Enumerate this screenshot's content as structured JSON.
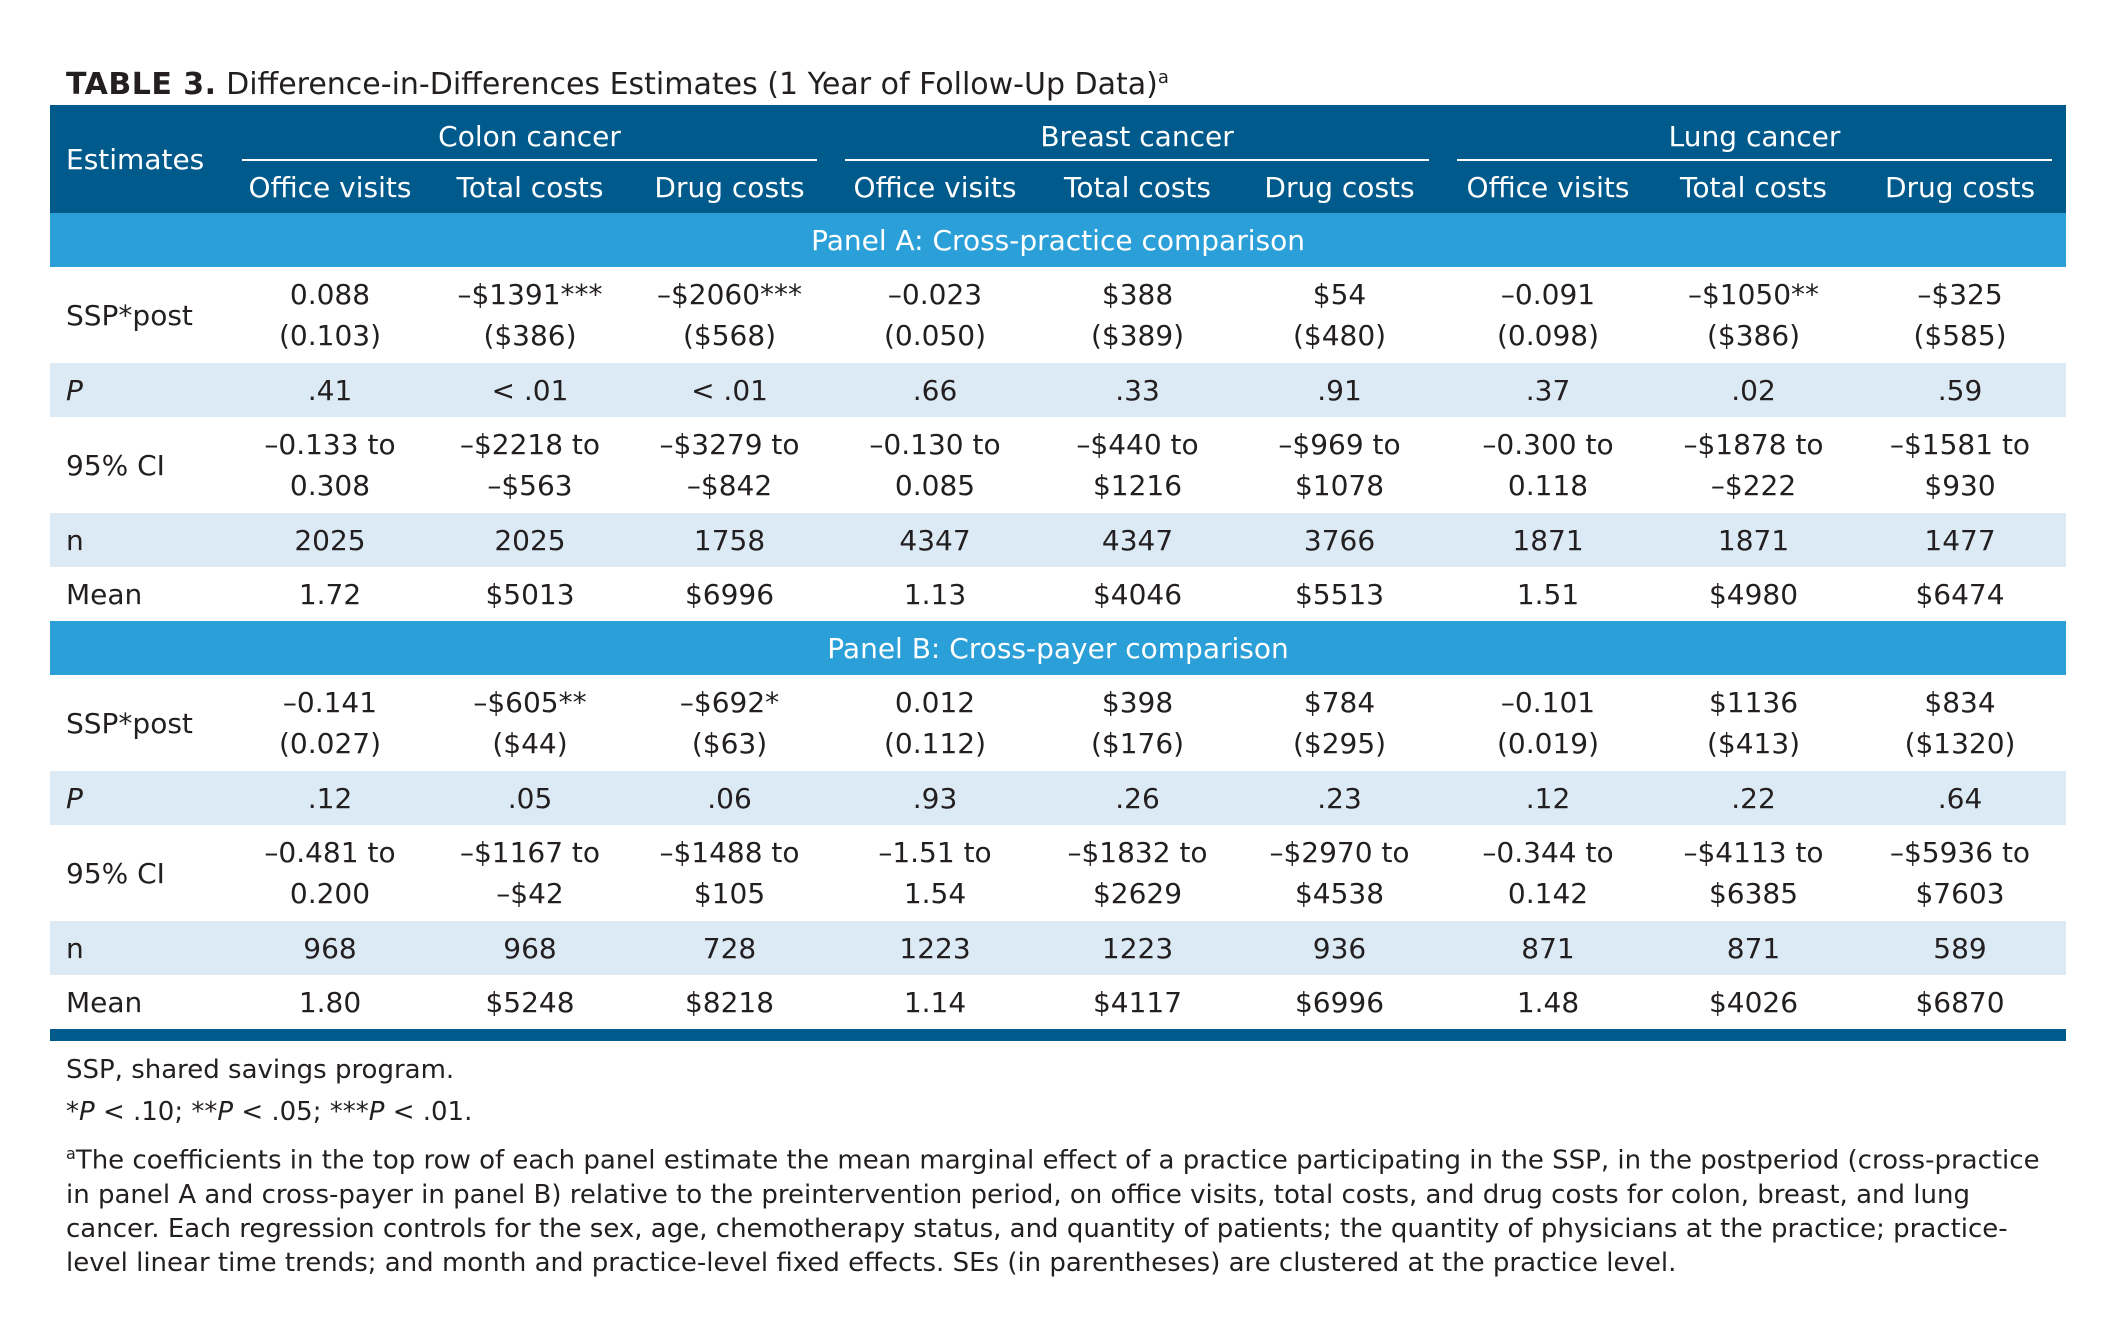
{
  "title": {
    "label": "TABLE 3.",
    "text": "Difference-in-Differences Estimates (1 Year of Follow-Up Data)",
    "marker": "a"
  },
  "header": {
    "estimates": "Estimates",
    "groups": [
      "Colon cancer",
      "Breast cancer",
      "Lung cancer"
    ],
    "columns": [
      "Office visits",
      "Total costs",
      "Drug costs",
      "Office visits",
      "Total costs",
      "Drug costs",
      "Office visits",
      "Total costs",
      "Drug costs"
    ]
  },
  "panels": [
    {
      "title": "Panel A: Cross-practice comparison",
      "rows": [
        {
          "label": "SSP*post",
          "cells": [
            [
              "0.088",
              "(0.103)"
            ],
            [
              "–$1391***",
              "($386)"
            ],
            [
              "–$2060***",
              "($568)"
            ],
            [
              "–0.023",
              "(0.050)"
            ],
            [
              "$388",
              "($389)"
            ],
            [
              "$54",
              "($480)"
            ],
            [
              "–0.091",
              "(0.098)"
            ],
            [
              "–$1050**",
              "($386)"
            ],
            [
              "–$325",
              "($585)"
            ]
          ]
        },
        {
          "label": "P",
          "cells": [
            [
              ".41"
            ],
            [
              "< .01"
            ],
            [
              "< .01"
            ],
            [
              ".66"
            ],
            [
              ".33"
            ],
            [
              ".91"
            ],
            [
              ".37"
            ],
            [
              ".02"
            ],
            [
              ".59"
            ]
          ]
        },
        {
          "label": "95% CI",
          "cells": [
            [
              "–0.133 to",
              "0.308"
            ],
            [
              "–$2218 to",
              "–$563"
            ],
            [
              "–$3279 to",
              "–$842"
            ],
            [
              "–0.130 to",
              "0.085"
            ],
            [
              "–$440 to",
              "$1216"
            ],
            [
              "–$969 to",
              "$1078"
            ],
            [
              "–0.300 to",
              "0.118"
            ],
            [
              "–$1878 to",
              "–$222"
            ],
            [
              "–$1581 to",
              "$930"
            ]
          ]
        },
        {
          "label": "n",
          "cells": [
            [
              "2025"
            ],
            [
              "2025"
            ],
            [
              "1758"
            ],
            [
              "4347"
            ],
            [
              "4347"
            ],
            [
              "3766"
            ],
            [
              "1871"
            ],
            [
              "1871"
            ],
            [
              "1477"
            ]
          ]
        },
        {
          "label": "Mean",
          "cells": [
            [
              "1.72"
            ],
            [
              "$5013"
            ],
            [
              "$6996"
            ],
            [
              "1.13"
            ],
            [
              "$4046"
            ],
            [
              "$5513"
            ],
            [
              "1.51"
            ],
            [
              "$4980"
            ],
            [
              "$6474"
            ]
          ]
        }
      ]
    },
    {
      "title": "Panel B: Cross-payer comparison",
      "rows": [
        {
          "label": "SSP*post",
          "cells": [
            [
              "–0.141",
              "(0.027)"
            ],
            [
              "–$605**",
              "($44)"
            ],
            [
              "–$692*",
              "($63)"
            ],
            [
              "0.012",
              "(0.112)"
            ],
            [
              "$398",
              "($176)"
            ],
            [
              "$784",
              "($295)"
            ],
            [
              "–0.101",
              "(0.019)"
            ],
            [
              "$1136",
              "($413)"
            ],
            [
              "$834",
              "($1320)"
            ]
          ]
        },
        {
          "label": "P",
          "cells": [
            [
              ".12"
            ],
            [
              ".05"
            ],
            [
              ".06"
            ],
            [
              ".93"
            ],
            [
              ".26"
            ],
            [
              ".23"
            ],
            [
              ".12"
            ],
            [
              ".22"
            ],
            [
              ".64"
            ]
          ]
        },
        {
          "label": "95% CI",
          "cells": [
            [
              "–0.481 to",
              "0.200"
            ],
            [
              "–$1167 to",
              "–$42"
            ],
            [
              "–$1488 to",
              "$105"
            ],
            [
              "–1.51 to",
              "1.54"
            ],
            [
              "–$1832 to",
              "$2629"
            ],
            [
              "–$2970 to",
              "$4538"
            ],
            [
              "–0.344 to",
              "0.142"
            ],
            [
              "–$4113 to",
              "$6385"
            ],
            [
              "–$5936 to",
              "$7603"
            ]
          ]
        },
        {
          "label": "n",
          "cells": [
            [
              "968"
            ],
            [
              "968"
            ],
            [
              "728"
            ],
            [
              "1223"
            ],
            [
              "1223"
            ],
            [
              "936"
            ],
            [
              "871"
            ],
            [
              "871"
            ],
            [
              "589"
            ]
          ]
        },
        {
          "label": "Mean",
          "cells": [
            [
              "1.80"
            ],
            [
              "$5248"
            ],
            [
              "$8218"
            ],
            [
              "1.14"
            ],
            [
              "$4117"
            ],
            [
              "$6996"
            ],
            [
              "1.48"
            ],
            [
              "$4026"
            ],
            [
              "$6870"
            ]
          ]
        }
      ]
    }
  ],
  "notes": {
    "abbrev": "SSP, shared savings program.",
    "significance": "*P < .10; **P < .05; ***P < .01.",
    "footnote_marker": "a",
    "footnote": "The coefficients in the top row of each panel estimate the mean marginal effect of a practice participating in the SSP, in the postperiod (cross-practice in panel A and cross-payer in panel B) relative to the preintervention period, on office visits, total costs, and drug costs for colon, breast, and lung cancer. Each regression controls for the sex, age, chemotherapy status, and quantity of patients; the quantity of physicians at the practice; practice-level linear time trends; and month and practice-level fixed effects. SEs (in parentheses) are clustered at the practice level."
  },
  "colors": {
    "header_bg": "#005a8c",
    "panel_bg": "#2a9fd8",
    "shade_bg": "#dceaf5"
  }
}
